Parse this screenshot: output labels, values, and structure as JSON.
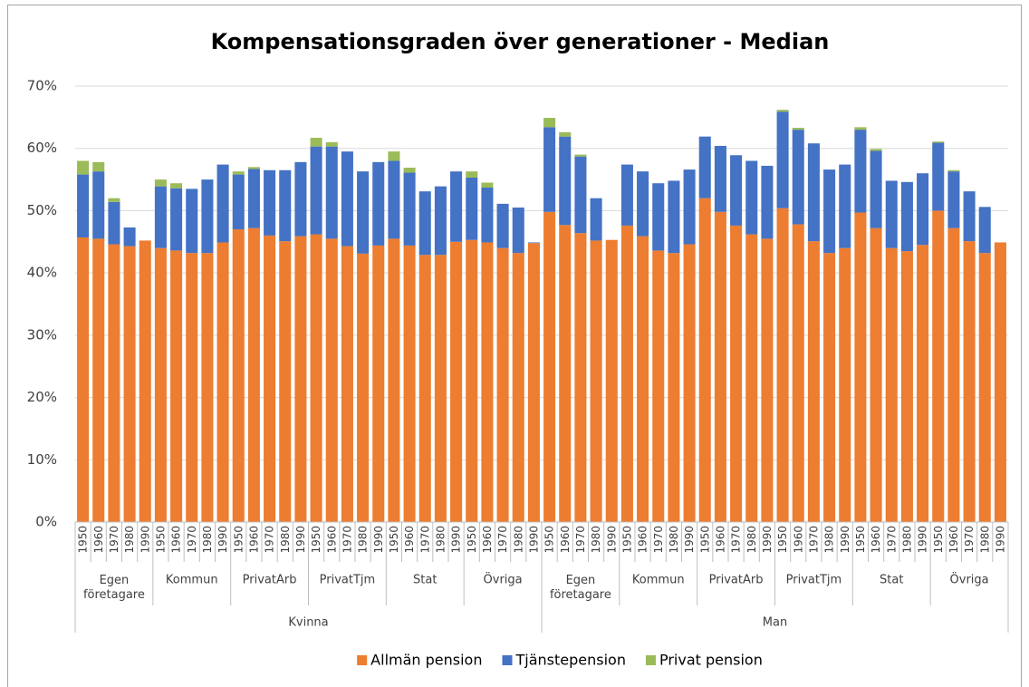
{
  "chart_data": {
    "type": "stacked_bar",
    "title": "Kompensationsgraden över generationer - Median",
    "categories": [
      "1950",
      "1960",
      "1970",
      "1980",
      "1990",
      "1950",
      "1960",
      "1970",
      "1980",
      "1990",
      "1950",
      "1960",
      "1970",
      "1980",
      "1990",
      "1950",
      "1960",
      "1970",
      "1980",
      "1990",
      "1950",
      "1960",
      "1970",
      "1980",
      "1990",
      "1950",
      "1960",
      "1970",
      "1980",
      "1990",
      "1950",
      "1960",
      "1970",
      "1980",
      "1990",
      "1950",
      "1960",
      "1970",
      "1980",
      "1990",
      "1950",
      "1960",
      "1970",
      "1980",
      "1990",
      "1950",
      "1960",
      "1970",
      "1980",
      "1990",
      "1950",
      "1960",
      "1970",
      "1980",
      "1990",
      "1950",
      "1960",
      "1970",
      "1980",
      "1990"
    ],
    "category_levels": [
      [
        "Egen företagare",
        "Kommun",
        "PrivatArb",
        "PrivatTjm",
        "Stat",
        "Övriga",
        "Egen företagare",
        "Kommun",
        "PrivatArb",
        "PrivatTjm",
        "Stat",
        "Övriga"
      ],
      [
        "Kvinna",
        "Man"
      ]
    ],
    "series": [
      {
        "name": "Allmän pension",
        "color": "#ed7d31",
        "values": [
          45.7,
          45.5,
          44.6,
          44.3,
          45.2,
          44.0,
          43.6,
          43.2,
          43.2,
          44.9,
          47.0,
          47.2,
          46.0,
          45.1,
          45.9,
          46.2,
          45.5,
          44.3,
          43.1,
          44.4,
          45.5,
          44.4,
          42.9,
          42.9,
          45.0,
          45.3,
          44.9,
          44.0,
          43.2,
          44.8,
          49.8,
          47.7,
          46.4,
          45.2,
          45.3,
          47.6,
          45.9,
          43.6,
          43.2,
          44.6,
          52.0,
          49.8,
          47.6,
          46.2,
          45.5,
          50.4,
          47.8,
          45.1,
          43.2,
          44.0,
          49.7,
          47.2,
          44.0,
          43.5,
          44.5,
          50.0,
          47.2,
          45.1,
          43.2,
          44.9
        ]
      },
      {
        "name": "Tjänstepension",
        "color": "#4472c4",
        "values": [
          10.1,
          10.8,
          6.8,
          3.0,
          0,
          9.9,
          10.0,
          10.3,
          11.8,
          12.5,
          8.8,
          9.5,
          10.5,
          11.4,
          11.9,
          14.1,
          14.8,
          15.2,
          13.2,
          13.4,
          12.5,
          11.7,
          10.2,
          11.0,
          11.3,
          10.0,
          8.8,
          7.1,
          7.3,
          0.1,
          13.6,
          14.2,
          12.3,
          6.8,
          0,
          9.8,
          10.4,
          10.8,
          11.6,
          12.0,
          9.9,
          10.6,
          11.3,
          11.8,
          11.7,
          15.5,
          15.2,
          15.7,
          13.4,
          13.4,
          13.3,
          12.4,
          10.8,
          11.1,
          11.5,
          10.9,
          9.1,
          8.0,
          7.4,
          0
        ]
      },
      {
        "name": "Privat pension",
        "color": "#9bbb59",
        "values": [
          2.2,
          1.5,
          0.6,
          0,
          0,
          1.1,
          0.8,
          0,
          0,
          0,
          0.5,
          0.3,
          0,
          0,
          0,
          1.4,
          0.7,
          0,
          0,
          0,
          1.5,
          0.8,
          0,
          0,
          0,
          1.0,
          0.8,
          0,
          0,
          0,
          1.5,
          0.7,
          0.3,
          0,
          0,
          0,
          0,
          0,
          0,
          0,
          0,
          0,
          0,
          0,
          0,
          0.3,
          0.3,
          0,
          0,
          0,
          0.4,
          0.3,
          0,
          0,
          0,
          0.2,
          0.2,
          0,
          0,
          0
        ]
      }
    ],
    "ylim": [
      0,
      70
    ],
    "yticks": [
      {
        "value": 0,
        "label": "0%"
      },
      {
        "value": 10,
        "label": "10%"
      },
      {
        "value": 20,
        "label": "20%"
      },
      {
        "value": 30,
        "label": "30%"
      },
      {
        "value": 40,
        "label": "40%"
      },
      {
        "value": 50,
        "label": "50%"
      },
      {
        "value": 60,
        "label": "60%"
      },
      {
        "value": 70,
        "label": "70%"
      }
    ],
    "grid": true,
    "legend": "bottom"
  }
}
